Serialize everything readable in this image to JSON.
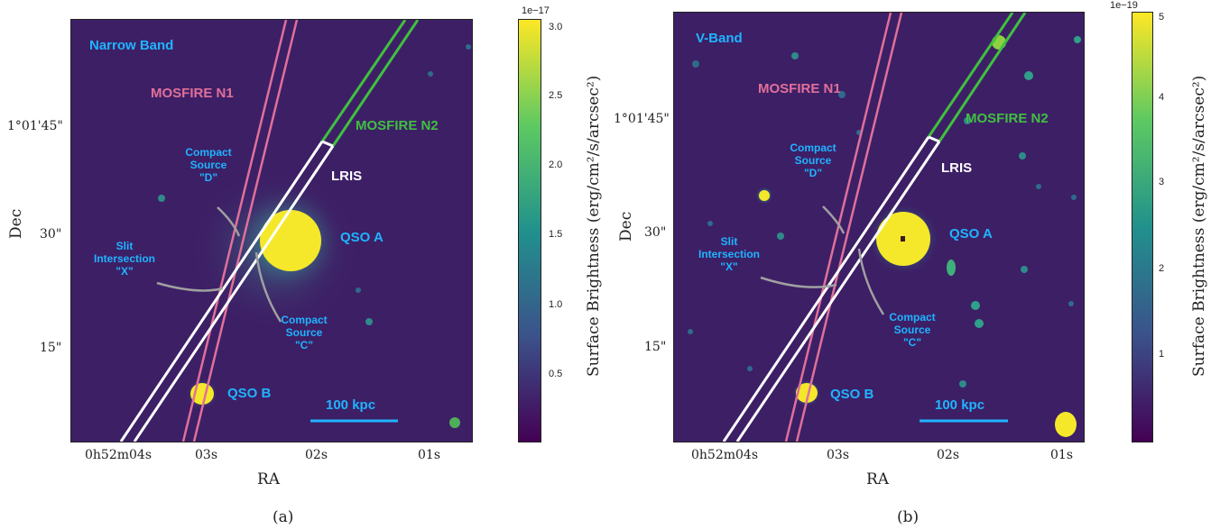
{
  "panels": [
    {
      "id": "a",
      "band_label": "Narrow Band",
      "mosfire_n1": "MOSFIRE N1",
      "mosfire_n2": "MOSFIRE N2",
      "lris": "LRIS",
      "qso_a": "QSO A",
      "qso_b": "QSO B",
      "compact_d": [
        "Compact",
        "Source",
        "\"D\""
      ],
      "compact_c": [
        "Compact",
        "Source",
        "\"C\""
      ],
      "slit_x": [
        "Slit",
        "Intersection",
        "\"X\""
      ],
      "scale_bar": "100 kpc",
      "y_ticks": [
        "1°01'45\"",
        "30\"",
        "15\""
      ],
      "x_ticks": [
        "0h52m04s",
        "03s",
        "02s",
        "01s"
      ],
      "xlabel": "RA",
      "ylabel": "Dec",
      "colorbar": {
        "multiplier": "1e−17",
        "ticks": [
          "3.0",
          "2.5",
          "2.0",
          "1.5",
          "1.0",
          "0.5"
        ],
        "label": "Surface Brightness (erg/cm²/s/arcsec²)"
      },
      "caption": "(a)"
    },
    {
      "id": "b",
      "band_label": "V-Band",
      "mosfire_n1": "MOSFIRE N1",
      "mosfire_n2": "MOSFIRE N2",
      "lris": "LRIS",
      "qso_a": "QSO A",
      "qso_b": "QSO B",
      "compact_d": [
        "Compact",
        "Source",
        "\"D\""
      ],
      "compact_c": [
        "Compact",
        "Source",
        "\"C\""
      ],
      "slit_x": [
        "Slit",
        "Intersection",
        "\"X\""
      ],
      "scale_bar": "100 kpc",
      "y_ticks": [
        "1°01'45\"",
        "30\"",
        "15\""
      ],
      "x_ticks": [
        "0h52m04s",
        "03s",
        "02s",
        "01s"
      ],
      "xlabel": "RA",
      "ylabel": "Dec",
      "colorbar": {
        "multiplier": "1e−19",
        "ticks": [
          "5",
          "4",
          "3",
          "2",
          "1"
        ],
        "label": "Surface Brightness (erg/cm²/s/arcsec²)"
      },
      "caption": "(b)"
    }
  ],
  "colors": {
    "background": "#3d1f66",
    "label_blue": "#1fb4ff",
    "mosfire_n1": "#e0709a",
    "mosfire_n2": "#40c040",
    "lris": "#ffffff",
    "source_yellow": "#f5e82a",
    "arrow_gray": "#a0a0a0"
  }
}
